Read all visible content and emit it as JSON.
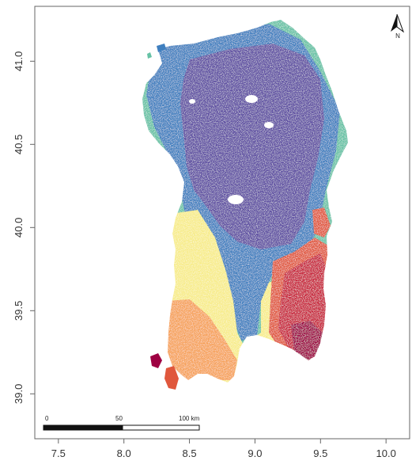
{
  "map": {
    "x_axis": {
      "ticks": [
        "7.5",
        "8.0",
        "8.5",
        "9.0",
        "9.5",
        "10.0"
      ],
      "tick_values": [
        7.5,
        8.0,
        8.5,
        9.0,
        9.5,
        10.0
      ],
      "range": [
        7.32,
        10.18
      ]
    },
    "y_axis": {
      "ticks": [
        "39.0",
        "39.5",
        "40.0",
        "40.5",
        "41.0"
      ],
      "tick_values": [
        39.0,
        39.5,
        40.0,
        40.5,
        41.0
      ],
      "range": [
        38.73,
        41.33
      ]
    },
    "scale_bar": {
      "labels": [
        "0",
        "50",
        "100 km"
      ]
    },
    "north_arrow": {
      "label": "N"
    },
    "colors": {
      "violet": "#5e4fa2",
      "blue": "#3f7fbf",
      "teal": "#66c2a5",
      "green_yellow": "#c7e89e",
      "yellow": "#f7ec8a",
      "orange": "#f6a25a",
      "red_orange": "#e0573c",
      "red": "#c8233a",
      "dark_red": "#9e0142"
    }
  }
}
